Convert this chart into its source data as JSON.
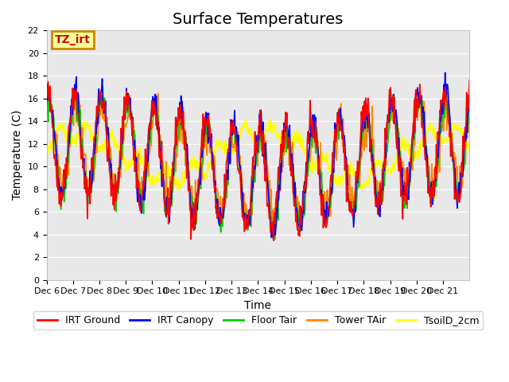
{
  "title": "Surface Temperatures",
  "xlabel": "Time",
  "ylabel": "Temperature (C)",
  "ylim": [
    0,
    22
  ],
  "yticks": [
    0,
    2,
    4,
    6,
    8,
    10,
    12,
    14,
    16,
    18,
    20,
    22
  ],
  "xtick_labels": [
    "Dec 6",
    "Dec 7",
    "Dec 8",
    "Dec 9",
    "Dec 10",
    "Dec 11",
    "Dec 12",
    "Dec 13",
    "Dec 14",
    "Dec 15",
    "Dec 16",
    "Dec 17",
    "Dec 18",
    "Dec 19",
    "Dec 20",
    "Dec 21"
  ],
  "series_colors": {
    "IRT Ground": "#ff0000",
    "IRT Canopy": "#0000ff",
    "Floor Tair": "#00cc00",
    "Tower TAir": "#ff8800",
    "TsoilD_2cm": "#ffff00"
  },
  "legend_labels": [
    "IRT Ground",
    "IRT Canopy",
    "Floor Tair",
    "Tower TAir",
    "TsoilD_2cm"
  ],
  "annotation_text": "TZ_irt",
  "annotation_facecolor": "#ffff99",
  "annotation_edgecolor": "#cc8800",
  "annotation_textcolor": "#cc0000",
  "background_color": "#e8e8e8",
  "n_points_per_day": 48,
  "n_days": 16,
  "random_seed": 42,
  "soil_base": 11.0,
  "soil_amplitude": 2.0,
  "title_fontsize": 14,
  "axis_label_fontsize": 10,
  "tick_fontsize": 8,
  "legend_fontsize": 9
}
